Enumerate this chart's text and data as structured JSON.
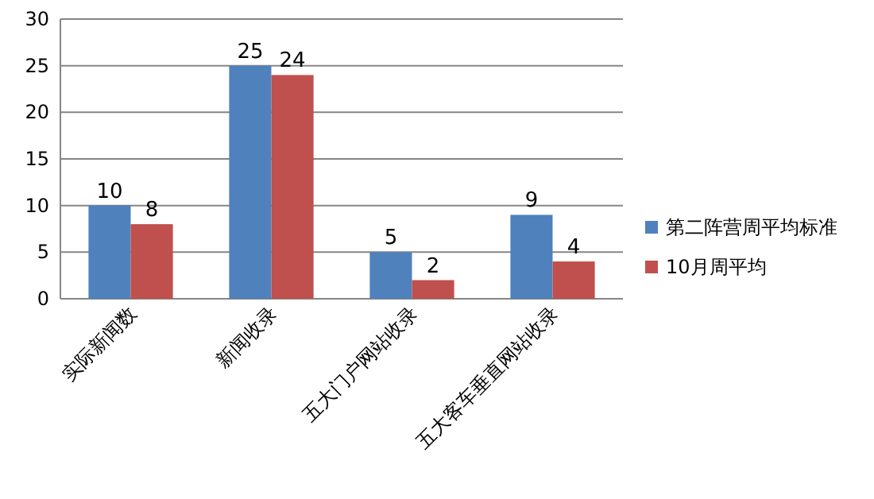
{
  "chart_data": {
    "type": "bar",
    "categories": [
      "实际新闻数",
      "新闻收录",
      "五大门户网站收录",
      "五大客车垂直网站收录"
    ],
    "series": [
      {
        "name": "第二阵营周平均标准",
        "color": "#4f81bd",
        "values": [
          10,
          25,
          5,
          9
        ]
      },
      {
        "name": "10月周平均",
        "color": "#c0504d",
        "values": [
          8,
          24,
          2,
          4
        ]
      }
    ],
    "ylim": [
      0,
      30
    ],
    "yticks": [
      0,
      5,
      10,
      15,
      20,
      25,
      30
    ],
    "grid": "y",
    "legend": "right",
    "data_labels": true
  }
}
